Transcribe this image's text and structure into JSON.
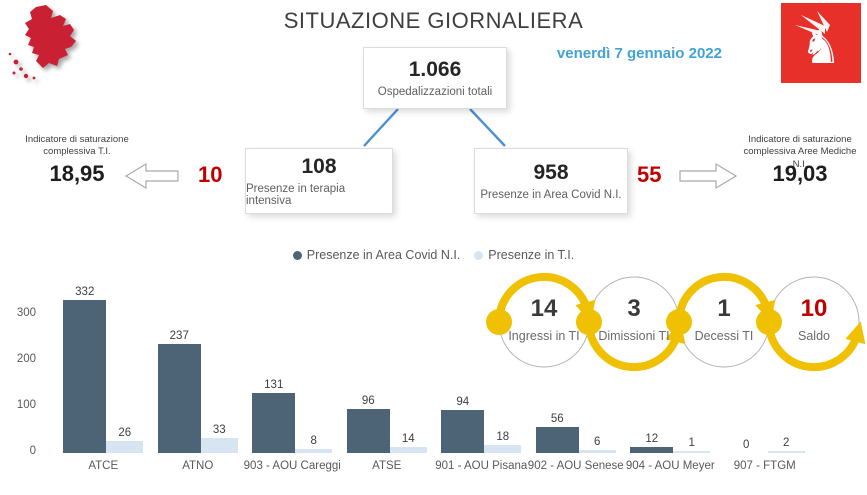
{
  "header": {
    "title": "SITUAZIONE GIORNALIERA",
    "date": "venerdì 7 gennaio 2022"
  },
  "totals": {
    "total": {
      "value": "1.066",
      "label": "Ospedalizzazioni totali"
    },
    "intensive": {
      "value": "108",
      "label": "Presenze in terapia intensiva"
    },
    "covid_area": {
      "value": "958",
      "label": "Presenze in Area Covid N.I."
    }
  },
  "left_indicator": {
    "label_line1": "Indicatore di saturazione",
    "label_line2": "complessiva T.I.",
    "value": "18,95",
    "delta": "10"
  },
  "right_indicator": {
    "label_line1": "Indicatore di saturazione",
    "label_line2": "complessiva Aree Mediche N.I.",
    "value": "19,03",
    "delta": "55"
  },
  "legend": [
    {
      "label": "Presenze in Area Covid N.I.",
      "color": "#4d6477"
    },
    {
      "label": "Presenze in T.I.",
      "color": "#d7e5f3"
    }
  ],
  "flow": {
    "items": [
      {
        "value": "14",
        "label": "Ingressi in TI",
        "value_color": "#3a3a3a"
      },
      {
        "value": "3",
        "label": "Dimissioni TI",
        "value_color": "#3a3a3a"
      },
      {
        "value": "1",
        "label": "Decessi TI",
        "value_color": "#3a3a3a"
      },
      {
        "value": "10",
        "label": "Saldo",
        "value_color": "#c00000"
      }
    ],
    "arrow_color": "#f0c102",
    "circle_color": "#b3b3b3"
  },
  "chart_data": {
    "type": "bar",
    "title": "",
    "xlabel": "",
    "ylabel": "",
    "categories": [
      "ATCE",
      "ATNO",
      "903 - AOU Careggi",
      "ATSE",
      "901 - AOU Pisana",
      "902 - AOU Senese",
      "904 - AOU Meyer",
      "907 - FTGM"
    ],
    "series": [
      {
        "name": "Presenze in Area Covid N.I.",
        "color": "#4d6477",
        "values": [
          332,
          237,
          131,
          96,
          94,
          56,
          12,
          0
        ]
      },
      {
        "name": "Presenze in T.I.",
        "color": "#d7e5f3",
        "values": [
          26,
          33,
          8,
          14,
          18,
          6,
          1,
          2
        ]
      }
    ],
    "yticks": [
      0,
      100,
      200,
      300
    ],
    "ylim": [
      0,
      390
    ],
    "grid": false,
    "legend_position": "top-center"
  },
  "colors": {
    "accent_red": "#c00000",
    "date_blue": "#41a3d6",
    "connector_blue": "#4a90d2",
    "map_red": "#c92133",
    "logo_red": "#e8302a"
  }
}
